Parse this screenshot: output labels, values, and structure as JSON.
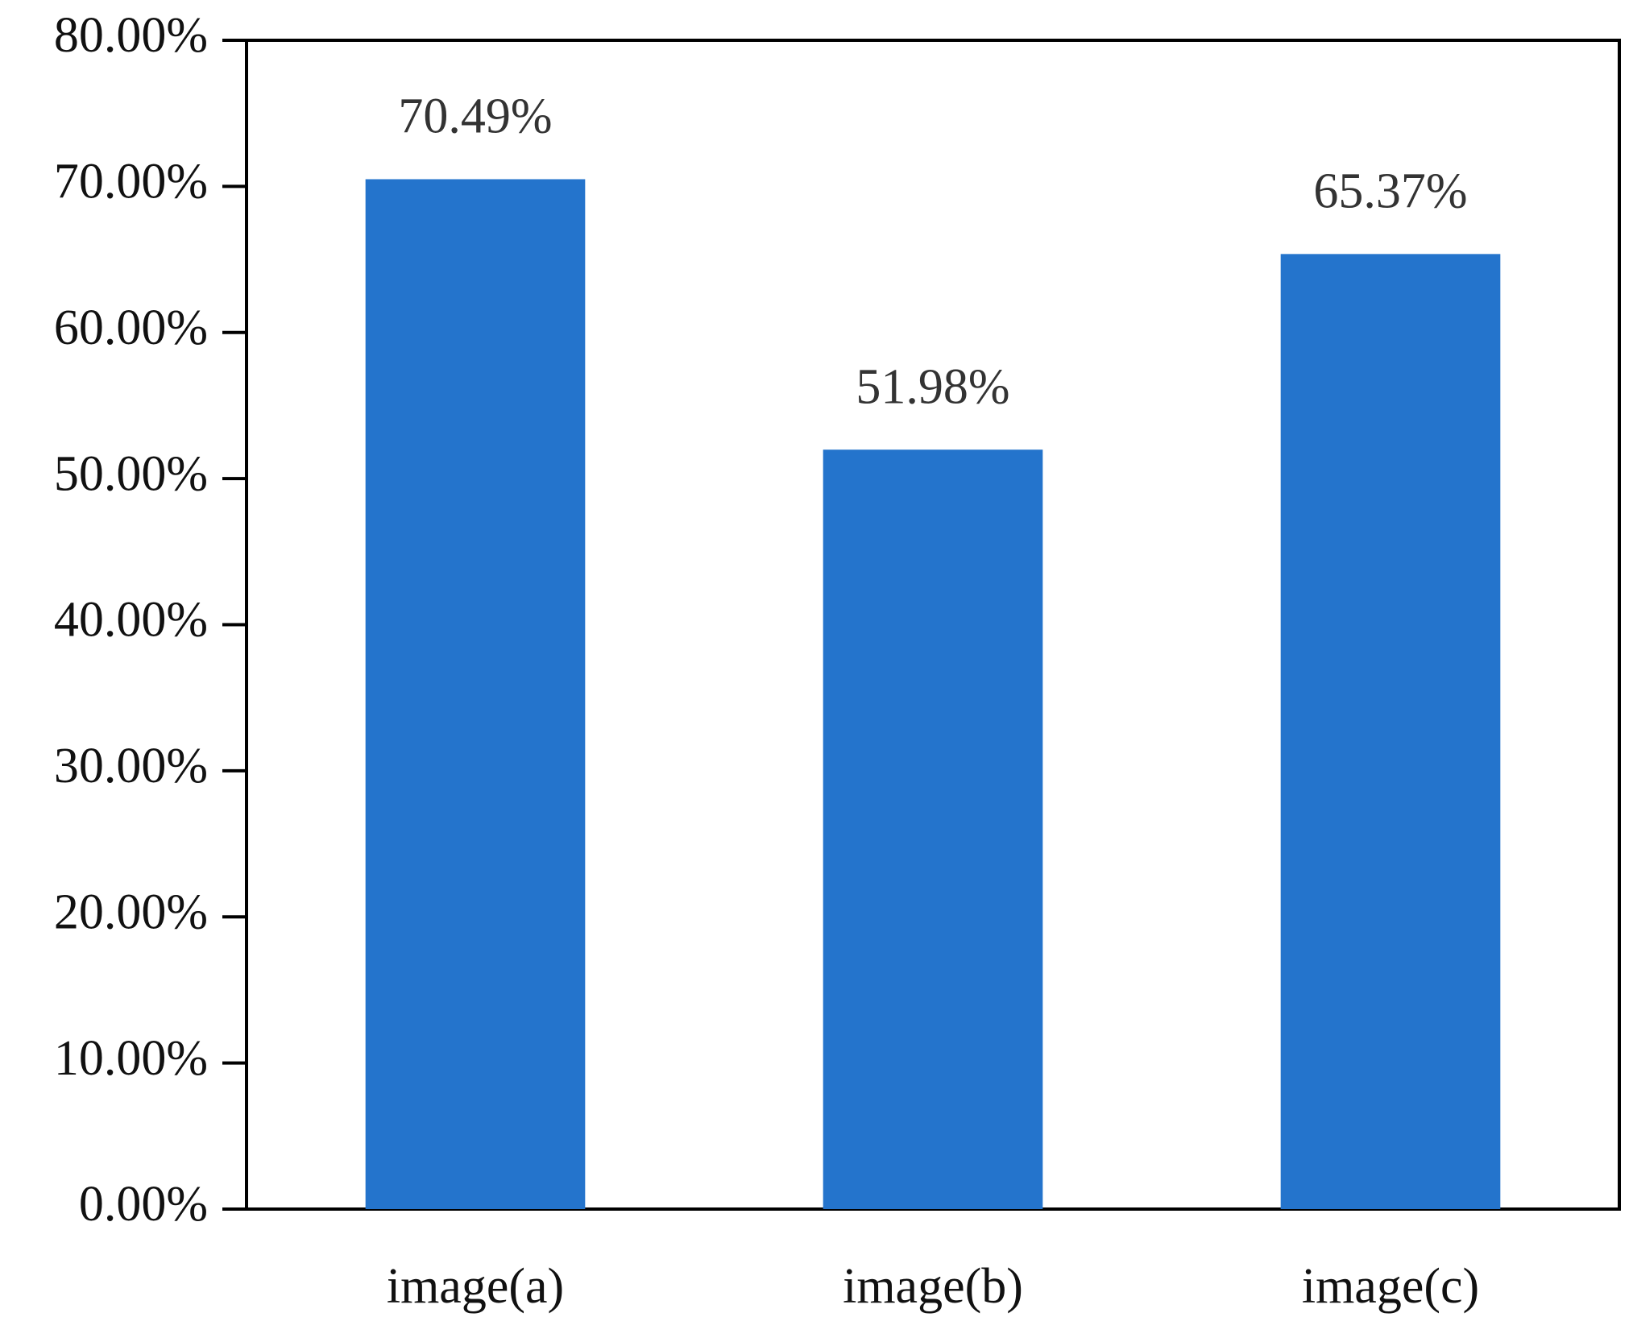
{
  "chart_data": {
    "type": "bar",
    "categories": [
      "image(a)",
      "image(b)",
      "image(c)"
    ],
    "values": [
      70.49,
      51.98,
      65.37
    ],
    "value_labels": [
      "70.49%",
      "51.98%",
      "65.37%"
    ],
    "color": "#2474cc",
    "ylim": [
      0,
      80
    ],
    "yticks": [
      {
        "value": 0,
        "label": "0.00%"
      },
      {
        "value": 10,
        "label": "10.00%"
      },
      {
        "value": 20,
        "label": "20.00%"
      },
      {
        "value": 30,
        "label": "30.00%"
      },
      {
        "value": 40,
        "label": "40.00%"
      },
      {
        "value": 50,
        "label": "50.00%"
      },
      {
        "value": 60,
        "label": "60.00%"
      },
      {
        "value": 70,
        "label": "70.00%"
      },
      {
        "value": 80,
        "label": "80.00%"
      }
    ],
    "grid": false
  }
}
